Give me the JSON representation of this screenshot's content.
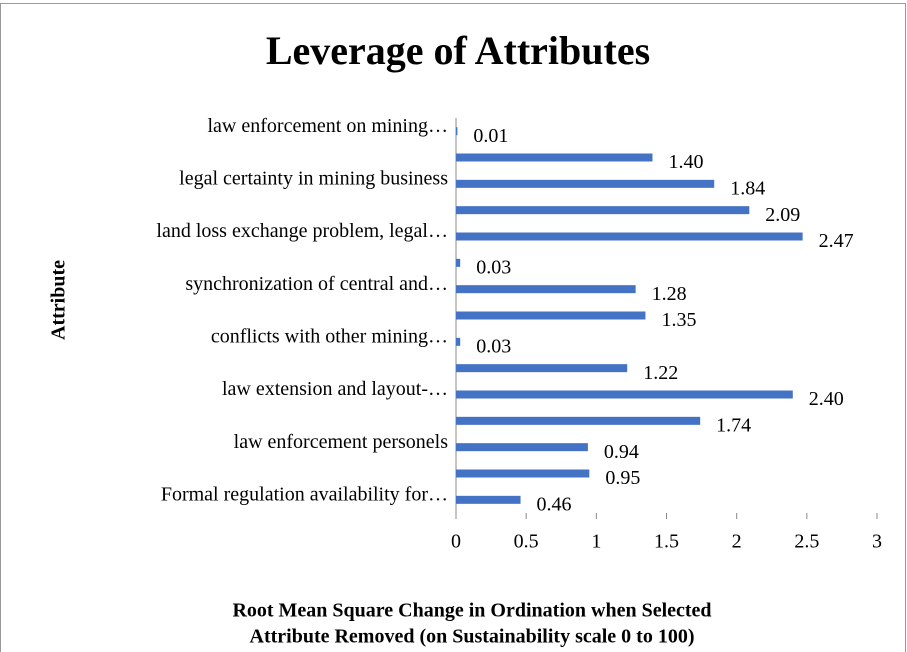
{
  "chart_data": {
    "type": "hbar",
    "title": "Leverage of Attributes",
    "y_label": "Attribute",
    "x_label": [
      "Root Mean Square Change in Ordination when Selected",
      "Attribute Removed (on Sustainability scale 0 to 100)"
    ],
    "categories": [
      "Formal regulation availability for…",
      null,
      "law enforcement personels",
      null,
      "law extension and layout-…",
      null,
      "conflicts with other mining…",
      null,
      "synchronization of central and…",
      null,
      "land loss exchange problem, legal…",
      null,
      "legal certainty in mining business",
      null,
      "law enforcement on mining…"
    ],
    "values": [
      0.46,
      0.95,
      0.94,
      1.74,
      2.4,
      1.22,
      0.03,
      1.35,
      1.28,
      0.03,
      2.47,
      2.09,
      1.84,
      1.4,
      0.01
    ],
    "value_labels": [
      "0.46",
      "0.95",
      "0.94",
      "1.74",
      "2.40",
      "1.22",
      "0.03",
      "1.35",
      "1.28",
      "0.03",
      "2.47",
      "2.09",
      "1.84",
      "1.40",
      "0.01"
    ],
    "color": "#4472c4",
    "xlim": [
      0,
      3
    ],
    "xticks": [
      0,
      0.5,
      1,
      1.5,
      2,
      2.5,
      3
    ]
  }
}
